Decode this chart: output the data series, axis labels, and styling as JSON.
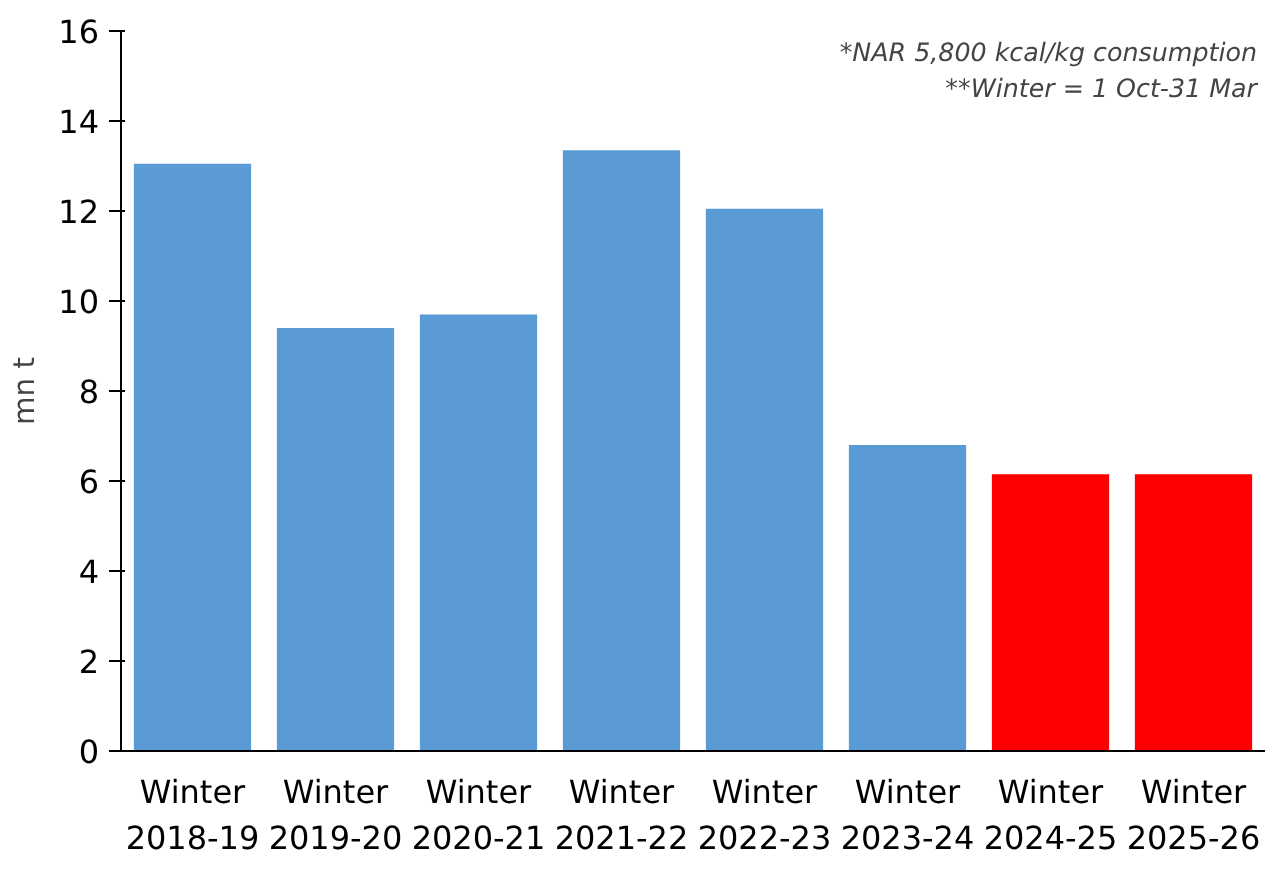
{
  "chart_data": {
    "type": "bar",
    "ylabel": "mn t",
    "categories": [
      "Winter\n2018-19",
      "Winter\n2019-20",
      "Winter\n2020-21",
      "Winter\n2021-22",
      "Winter\n2022-23",
      "Winter\n2023-24",
      "Winter\n2024-25",
      "Winter\n2025-26"
    ],
    "values": [
      13.05,
      9.4,
      9.7,
      13.35,
      12.05,
      6.8,
      6.15,
      6.15
    ],
    "colors": [
      "#5b9bd5",
      "#5b9bd5",
      "#5b9bd5",
      "#5b9bd5",
      "#5b9bd5",
      "#5b9bd5",
      "#ff0000",
      "#ff0000"
    ],
    "ylim": [
      0,
      16
    ],
    "yticks": [
      0,
      2,
      4,
      6,
      8,
      10,
      12,
      14,
      16
    ],
    "grid": false,
    "annotations": [
      "*NAR 5,800 kcal/kg consumption",
      "**Winter = 1 Oct-31 Mar"
    ]
  }
}
